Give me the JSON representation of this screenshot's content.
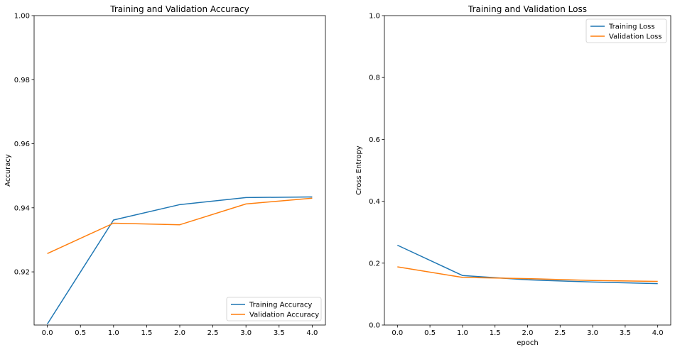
{
  "colors": {
    "training": "#1f77b4",
    "validation": "#ff7f0e"
  },
  "chart_data": [
    {
      "type": "line",
      "title": "Training and Validation Accuracy",
      "xlabel": "",
      "ylabel": "Accuracy",
      "x": [
        0,
        1,
        2,
        3,
        4
      ],
      "xlim": [
        -0.2,
        4.2
      ],
      "ylim": [
        0.9034,
        1.0
      ],
      "xticks": [
        "0.0",
        "0.5",
        "1.0",
        "1.5",
        "2.0",
        "2.5",
        "3.0",
        "3.5",
        "4.0"
      ],
      "yticks": [
        "0.92",
        "0.94",
        "0.96",
        "0.98",
        "1.00"
      ],
      "legend_position": "lower-right",
      "grid": false,
      "series": [
        {
          "name": "Training Accuracy",
          "values": [
            0.9037,
            0.9362,
            0.941,
            0.9432,
            0.9434
          ]
        },
        {
          "name": "Validation Accuracy",
          "values": [
            0.9257,
            0.9352,
            0.9347,
            0.9412,
            0.943
          ]
        }
      ]
    },
    {
      "type": "line",
      "title": "Training and Validation Loss",
      "xlabel": "epoch",
      "ylabel": "Cross Entropy",
      "x": [
        0,
        1,
        2,
        3,
        4
      ],
      "xlim": [
        -0.2,
        4.2
      ],
      "ylim": [
        0.0,
        1.0
      ],
      "xticks": [
        "0.0",
        "0.5",
        "1.0",
        "1.5",
        "2.0",
        "2.5",
        "3.0",
        "3.5",
        "4.0"
      ],
      "yticks": [
        "0.0",
        "0.2",
        "0.4",
        "0.6",
        "0.8",
        "1.0"
      ],
      "legend_position": "upper-right",
      "grid": false,
      "series": [
        {
          "name": "Training Loss",
          "values": [
            0.258,
            0.16,
            0.146,
            0.139,
            0.134
          ]
        },
        {
          "name": "Validation Loss",
          "values": [
            0.188,
            0.154,
            0.15,
            0.144,
            0.141
          ]
        }
      ]
    }
  ]
}
